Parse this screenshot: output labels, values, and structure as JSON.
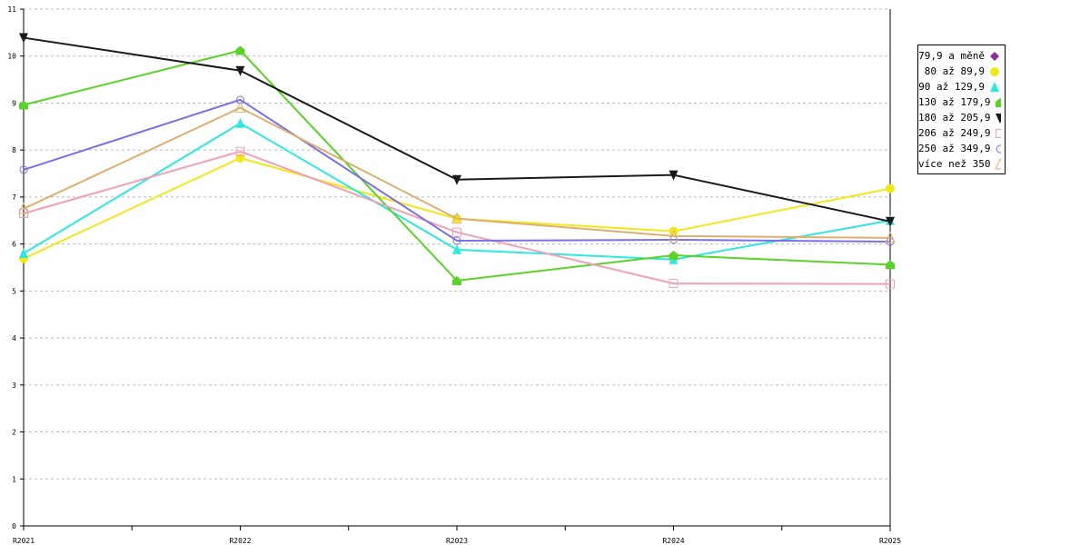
{
  "chart_data": {
    "type": "line",
    "title": "",
    "xlabel": "",
    "ylabel": "",
    "categories": [
      "R2021",
      "R2022",
      "R2023",
      "R2024",
      "R2025"
    ],
    "ylim": [
      0,
      11
    ],
    "yticks": [
      "0",
      "1",
      "2",
      "3",
      "4",
      "5",
      "6",
      "7",
      "8",
      "9",
      "10",
      "11"
    ],
    "grid": true,
    "legend_position": "right",
    "series": [
      {
        "name": "79,9 a měně",
        "color": "#8b2f9b",
        "marker": "diamond",
        "values": [
          null,
          null,
          null,
          null,
          null
        ]
      },
      {
        "name": "80 až 89,9",
        "color": "#f0e81c",
        "marker": "circle-filled",
        "values": [
          5.69,
          7.83,
          6.54,
          6.27,
          7.18
        ]
      },
      {
        "name": "90 až 129,9",
        "color": "#2ee8e0",
        "marker": "triangle-up",
        "values": [
          5.8,
          8.57,
          5.88,
          5.67,
          6.5
        ]
      },
      {
        "name": "130 až 179,9",
        "color": "#5ad22a",
        "marker": "pentagon",
        "values": [
          8.96,
          10.12,
          5.22,
          5.76,
          5.56
        ]
      },
      {
        "name": "180 až 205,9",
        "color": "#1a1a1a",
        "marker": "triangle-down",
        "values": [
          10.39,
          9.69,
          7.37,
          7.47,
          6.48
        ]
      },
      {
        "name": "206 až 249,9",
        "color": "#f0a0b8",
        "marker": "square-open",
        "values": [
          6.65,
          7.97,
          6.25,
          5.16,
          5.15
        ]
      },
      {
        "name": "250 až 349,9",
        "color": "#7a70e8",
        "marker": "circle-open",
        "values": [
          7.58,
          9.07,
          6.07,
          6.09,
          6.05
        ]
      },
      {
        "name": "více než 350",
        "color": "#dcb070",
        "marker": "triangle-open",
        "values": [
          6.75,
          8.9,
          6.54,
          6.17,
          6.13
        ]
      }
    ]
  }
}
